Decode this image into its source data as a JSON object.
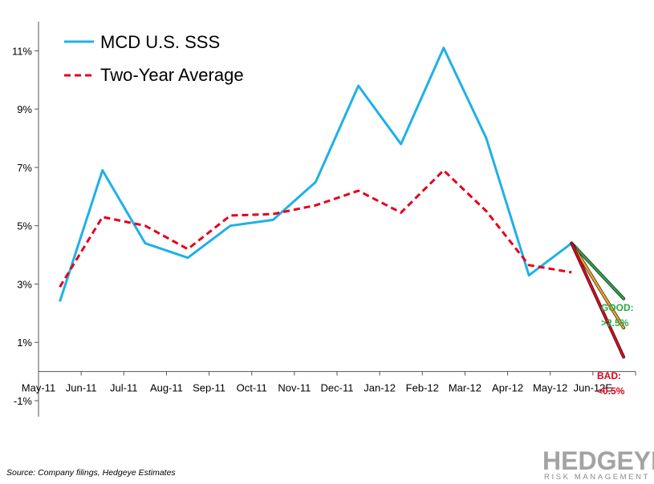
{
  "chart_data": {
    "type": "line",
    "title": "",
    "xlabel": "",
    "ylabel": "",
    "categories": [
      "May-11",
      "Jun-11",
      "Jul-11",
      "Aug-11",
      "Sep-11",
      "Oct-11",
      "Nov-11",
      "Dec-11",
      "Jan-12",
      "Feb-12",
      "Mar-12",
      "Apr-12",
      "May-12",
      "Jun-12E"
    ],
    "ylim": [
      -1,
      12
    ],
    "yticks": [
      -1,
      1,
      3,
      5,
      7,
      9,
      11
    ],
    "ytick_labels": [
      "-1%",
      "1%",
      "3%",
      "5%",
      "7%",
      "9%",
      "11%"
    ],
    "series": [
      {
        "name": "MCD U.S. SSS",
        "color": "#1fb0e8",
        "dash": "solid",
        "values": [
          2.4,
          6.9,
          4.4,
          3.9,
          5.0,
          5.2,
          6.5,
          9.8,
          7.8,
          11.1,
          8.0,
          3.3,
          4.4,
          null
        ]
      },
      {
        "name": "Two-Year Average",
        "color": "#e3001b",
        "dash": "dashed",
        "values": [
          2.9,
          5.3,
          5.0,
          4.2,
          5.35,
          5.4,
          5.7,
          6.2,
          5.45,
          6.9,
          5.5,
          3.65,
          3.4,
          null
        ]
      }
    ],
    "projections": [
      {
        "color": "#2aa845",
        "from": 12,
        "from_value": 4.4,
        "to": 13,
        "to_value": 2.5
      },
      {
        "color": "#f5a623",
        "from": 12,
        "from_value": 4.4,
        "to": 13,
        "to_value": 1.5
      },
      {
        "color": "#e3001b",
        "from": 12,
        "from_value": 4.4,
        "to": 13,
        "to_value": 0.5
      }
    ],
    "annotations": [
      {
        "lines": [
          "GOOD:",
          ">2.5%"
        ],
        "color": "#2aa845"
      },
      {
        "lines": [
          "BAD:",
          "<0.5%"
        ],
        "color": "#e3001b"
      }
    ]
  },
  "source_text": "Source: Company filings, Hedgeye Estimates",
  "brand": {
    "name": "HEDGEYE",
    "tagline": "RISK MANAGEMENT"
  }
}
